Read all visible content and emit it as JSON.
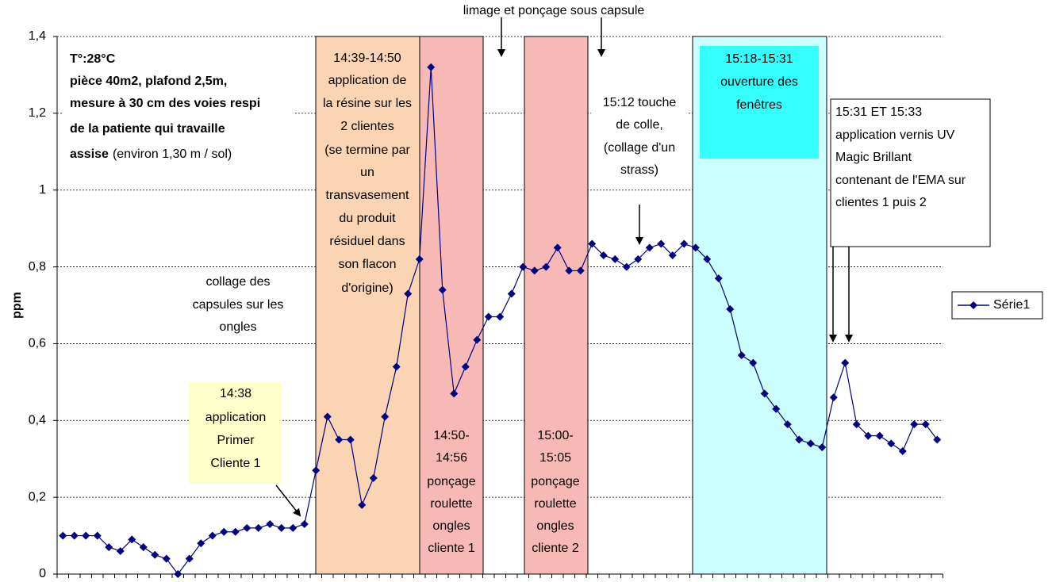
{
  "chart_data": {
    "type": "line",
    "y_label": "ppm",
    "ylim": [
      0,
      1.4
    ],
    "yticks": [
      0,
      {
        "value": 0.2,
        "label": "0,2"
      },
      {
        "value": 0.4,
        "label": "0,4"
      },
      {
        "value": 0.6,
        "label": "0,6"
      },
      {
        "value": 0.8,
        "label": "0,8"
      },
      1,
      {
        "value": 1.2,
        "label": "1,2"
      },
      {
        "value": 1.4,
        "label": "1,4"
      }
    ],
    "grid": true,
    "legend": "right",
    "categories": [
      null,
      null,
      null,
      null,
      null,
      null,
      null,
      null,
      null,
      null,
      null,
      null,
      null,
      null,
      null,
      null,
      null,
      null,
      null,
      null,
      null,
      null,
      null,
      null,
      null,
      null,
      null,
      null,
      null,
      null,
      null,
      null,
      null,
      null,
      null,
      null,
      null,
      null,
      null,
      null,
      null,
      null,
      null,
      null,
      null,
      null,
      null,
      null,
      null,
      null,
      null,
      null,
      null,
      null,
      null,
      null,
      null,
      null,
      null,
      null,
      null,
      null,
      null,
      null,
      null,
      null,
      null,
      null,
      null,
      null,
      null,
      null,
      null,
      null,
      null,
      null,
      null
    ],
    "series": [
      {
        "name": "Série1",
        "color": "#000080",
        "values": [
          0.1,
          0.1,
          0.1,
          0.1,
          0.07,
          0.06,
          0.09,
          0.07,
          0.05,
          0.04,
          0.0,
          0.04,
          0.08,
          0.1,
          0.11,
          0.11,
          0.12,
          0.12,
          0.13,
          0.12,
          0.12,
          0.13,
          0.27,
          0.41,
          0.35,
          0.35,
          0.18,
          0.25,
          0.41,
          0.54,
          0.73,
          0.82,
          1.32,
          0.74,
          0.47,
          0.54,
          0.61,
          0.67,
          0.67,
          0.73,
          0.8,
          0.79,
          0.8,
          0.85,
          0.79,
          0.79,
          0.86,
          0.83,
          0.82,
          0.8,
          0.82,
          0.85,
          0.86,
          0.83,
          0.86,
          0.85,
          0.82,
          0.77,
          0.69,
          0.57,
          0.55,
          0.47,
          0.43,
          0.39,
          0.35,
          0.34,
          0.33,
          0.46,
          0.55,
          0.39,
          0.36,
          0.36,
          0.34,
          0.32,
          0.39,
          0.39,
          0.35
        ]
      }
    ],
    "annotations": {
      "top": [
        "limage et ponçage sous capsule"
      ],
      "conditions": [
        "T°:28°C",
        "pièce 40m2, plafond 2,5m,",
        "mesure à 30 cm des voies respi",
        "de la patiente qui travaille",
        "assise",
        "(environ 1,30 m / sol)"
      ],
      "resin": [
        "14:39-14:50",
        "application de",
        "la résine sur les",
        "2 clientes",
        "(se termine par",
        "un",
        "transvasement",
        "du produit",
        "résiduel dans",
        "son flacon",
        "d'origine)"
      ],
      "capsules": [
        "collage des",
        "capsules sur les",
        "ongles"
      ],
      "sanding1": [
        "14:50-",
        "14:56",
        "ponçage",
        "roulette",
        "ongles",
        "cliente 1"
      ],
      "sanding2": [
        "15:00-",
        "15:05",
        "ponçage",
        "roulette",
        "ongles",
        "cliente 2"
      ],
      "glue": [
        "15:12 touche",
        "de colle,",
        "(collage d'un",
        "strass)"
      ],
      "windows": [
        "15:18-15:31",
        "ouverture des",
        "fenêtres"
      ],
      "primer": [
        "14:38",
        "application",
        "Primer",
        "Cliente 1"
      ],
      "varnish": [
        "15:31 ET 15:33",
        "application vernis UV",
        "Magic Brillant",
        "contenant de l'EMA sur",
        "clientes 1 puis 2"
      ]
    }
  }
}
